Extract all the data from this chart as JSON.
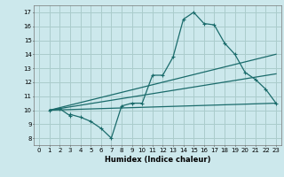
{
  "title": "",
  "xlabel": "Humidex (Indice chaleur)",
  "background_color": "#cce8ec",
  "grid_color": "#aacccc",
  "line_color": "#1a6b6b",
  "xlim": [
    -0.5,
    23.5
  ],
  "ylim": [
    7.5,
    17.5
  ],
  "xticks": [
    0,
    1,
    2,
    3,
    4,
    5,
    6,
    7,
    8,
    9,
    10,
    11,
    12,
    13,
    14,
    15,
    16,
    17,
    18,
    19,
    20,
    21,
    22,
    23
  ],
  "yticks": [
    8,
    9,
    10,
    11,
    12,
    13,
    14,
    15,
    16,
    17
  ],
  "line1_x": [
    1,
    2,
    3,
    3,
    4,
    5,
    6,
    7,
    8,
    9,
    10,
    11,
    12,
    13,
    14,
    15,
    16,
    17,
    18,
    19,
    20,
    21,
    22,
    23
  ],
  "line1_y": [
    10.0,
    10.1,
    9.6,
    9.7,
    9.5,
    9.2,
    8.7,
    8.0,
    10.3,
    10.5,
    10.5,
    12.5,
    12.5,
    13.8,
    16.5,
    17.0,
    16.2,
    16.1,
    14.8,
    14.0,
    12.7,
    12.2,
    11.5,
    10.5
  ],
  "line2_x": [
    1,
    23
  ],
  "line2_y": [
    10.0,
    14.0
  ],
  "line3_x": [
    1,
    23
  ],
  "line3_y": [
    10.0,
    12.6
  ],
  "line4_x": [
    1,
    23
  ],
  "line4_y": [
    10.0,
    10.5
  ]
}
